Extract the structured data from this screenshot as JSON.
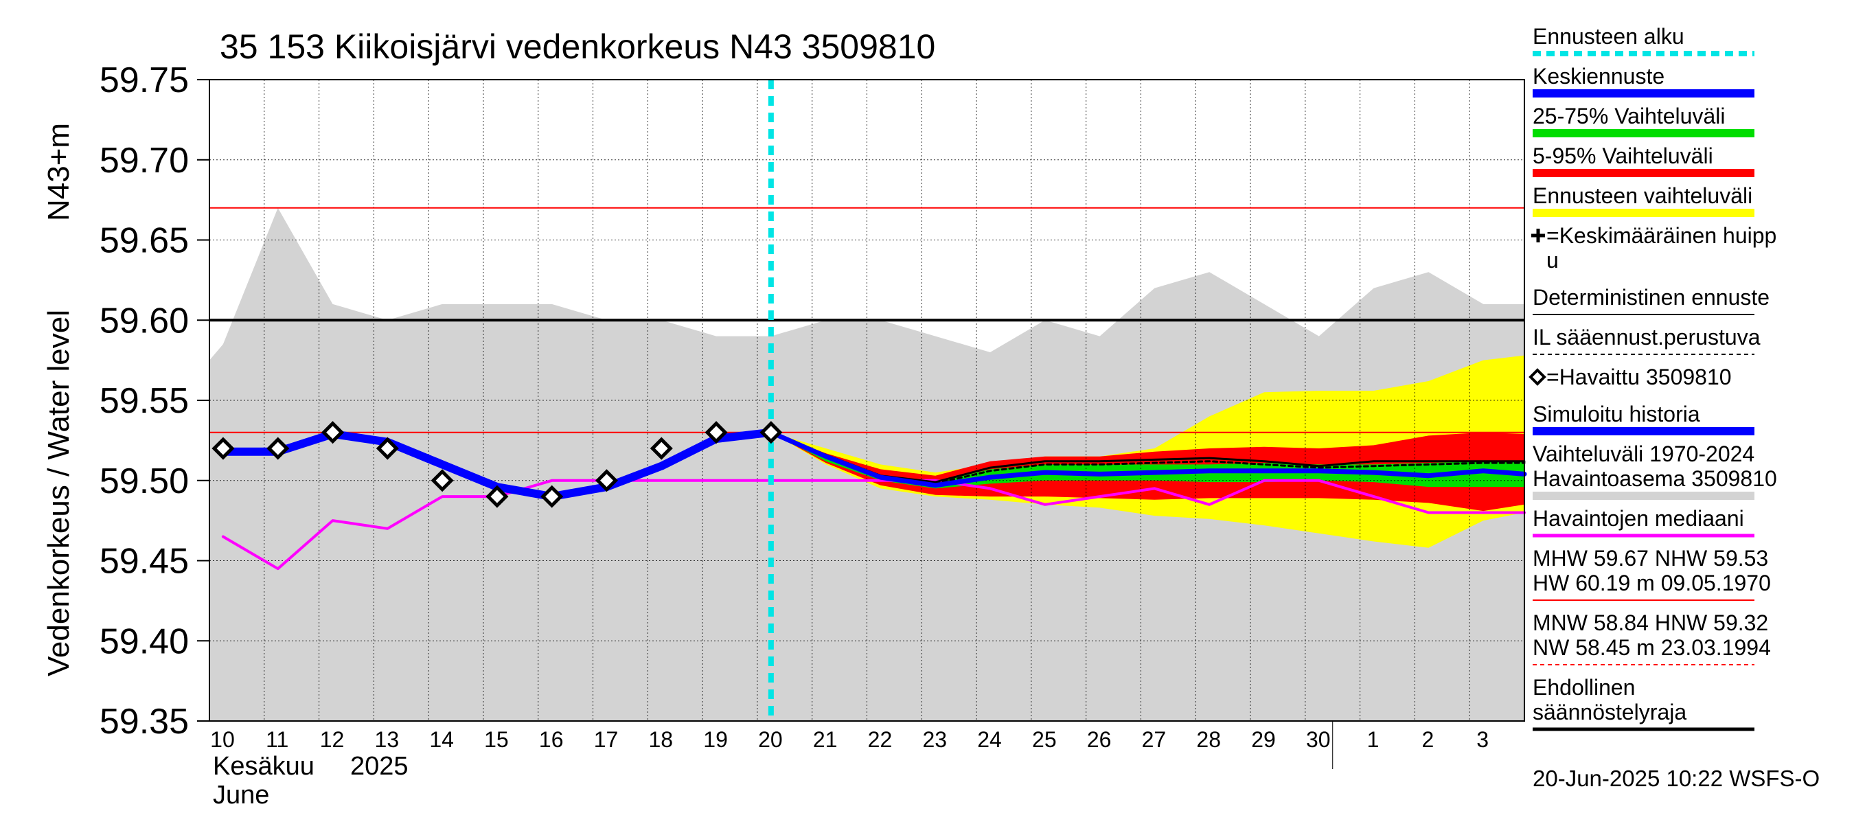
{
  "chart_data": {
    "type": "line",
    "title": "35 153 Kiikoisjärvi vedenkorkeus N43 3509810",
    "ylabel": "Vedenkorkeus / Water level",
    "yunit": "N43+m",
    "ylim": [
      59.35,
      59.75
    ],
    "yticks": [
      "59.75",
      "59.70",
      "59.65",
      "59.60",
      "59.55",
      "59.50",
      "59.45",
      "59.40",
      "59.35"
    ],
    "xlim": [
      -0.25,
      23.75
    ],
    "x_tick_labels": [
      "10",
      "11",
      "12",
      "13",
      "14",
      "15",
      "16",
      "17",
      "18",
      "19",
      "20",
      "21",
      "22",
      "23",
      "24",
      "25",
      "26",
      "27",
      "28",
      "29",
      "30",
      "1",
      "2",
      "3"
    ],
    "x_month_label_1": "Kesäkuu",
    "x_year_label": "2025",
    "x_month_label_2": "June",
    "forecast_start_x": 10,
    "series": [
      {
        "name": "Vaihteluväli 1970-2024 upper",
        "color": "#d3d3d3",
        "x": [
          -0.25,
          0,
          1,
          2,
          3,
          4,
          5,
          6,
          7,
          8,
          9,
          10,
          11,
          12,
          13,
          14,
          15,
          16,
          17,
          18,
          19,
          20,
          21,
          22,
          23,
          23.75
        ],
        "values": [
          59.575,
          59.585,
          59.67,
          59.61,
          59.6,
          59.61,
          59.61,
          59.61,
          59.6,
          59.6,
          59.59,
          59.59,
          59.6,
          59.6,
          59.59,
          59.58,
          59.6,
          59.59,
          59.62,
          59.63,
          59.61,
          59.59,
          59.62,
          59.63,
          59.61,
          59.61
        ]
      },
      {
        "name": "Ennusteen vaihteluväli upper",
        "color": "#ffff00",
        "x": [
          10,
          11,
          12,
          13,
          14,
          15,
          16,
          17,
          18,
          19,
          20,
          21,
          22,
          23,
          23.75
        ],
        "values": [
          59.53,
          59.52,
          59.51,
          59.505,
          59.51,
          59.515,
          59.515,
          59.52,
          59.54,
          59.555,
          59.556,
          59.556,
          59.562,
          59.575,
          59.578
        ]
      },
      {
        "name": "Ennusteen vaihteluväli lower",
        "color": "#ffff00",
        "x": [
          10,
          11,
          12,
          13,
          14,
          15,
          16,
          17,
          18,
          19,
          20,
          21,
          22,
          23,
          23.75
        ],
        "values": [
          59.53,
          59.51,
          59.495,
          59.49,
          59.488,
          59.485,
          59.483,
          59.478,
          59.476,
          59.472,
          59.467,
          59.462,
          59.458,
          59.475,
          59.48
        ]
      },
      {
        "name": "5-95% Vaihteluväli upper",
        "color": "#ff0000",
        "x": [
          10,
          11,
          12,
          13,
          14,
          15,
          16,
          17,
          18,
          19,
          20,
          21,
          22,
          23,
          23.75
        ],
        "values": [
          59.53,
          59.517,
          59.507,
          59.503,
          59.512,
          59.515,
          59.515,
          59.518,
          59.52,
          59.521,
          59.52,
          59.522,
          59.528,
          59.53,
          59.529
        ]
      },
      {
        "name": "5-95% Vaihteluväli lower",
        "color": "#ff0000",
        "x": [
          10,
          11,
          12,
          13,
          14,
          15,
          16,
          17,
          18,
          19,
          20,
          21,
          22,
          23,
          23.75
        ],
        "values": [
          59.53,
          59.511,
          59.497,
          59.491,
          59.49,
          59.49,
          59.489,
          59.488,
          59.489,
          59.489,
          59.489,
          59.488,
          59.486,
          59.481,
          59.485
        ]
      },
      {
        "name": "25-75% Vaihteluväli upper",
        "color": "#00dd00",
        "x": [
          10,
          11,
          12,
          13,
          14,
          15,
          16,
          17,
          18,
          19,
          20,
          21,
          22,
          23,
          23.75
        ],
        "values": [
          59.53,
          59.516,
          59.503,
          59.499,
          59.507,
          59.51,
          59.51,
          59.51,
          59.51,
          59.511,
          59.51,
          59.51,
          59.511,
          59.512,
          59.512
        ]
      },
      {
        "name": "25-75% Vaihteluväli lower",
        "color": "#00dd00",
        "x": [
          10,
          11,
          12,
          13,
          14,
          15,
          16,
          17,
          18,
          19,
          20,
          21,
          22,
          23,
          23.75
        ],
        "values": [
          59.53,
          59.512,
          59.5,
          59.495,
          59.498,
          59.5,
          59.5,
          59.5,
          59.499,
          59.499,
          59.5,
          59.499,
          59.496,
          59.496,
          59.496
        ]
      },
      {
        "name": "Deterministinen ennuste",
        "color": "#000000",
        "x": [
          10,
          11,
          12,
          13,
          14,
          15,
          16,
          17,
          18,
          19,
          20,
          21,
          22,
          23,
          23.75
        ],
        "values": [
          59.53,
          59.516,
          59.503,
          59.499,
          59.508,
          59.512,
          59.512,
          59.513,
          59.514,
          59.512,
          59.509,
          59.512,
          59.512,
          59.512,
          59.512
        ]
      },
      {
        "name": "IL sääennust.perustuva",
        "color": "#000000",
        "x": [
          10,
          11,
          12,
          13,
          14,
          15,
          16,
          17,
          18,
          19,
          20,
          21,
          22,
          23,
          23.75
        ],
        "values": [
          59.53,
          59.515,
          59.502,
          59.498,
          59.506,
          59.51,
          59.51,
          59.511,
          59.512,
          59.51,
          59.508,
          59.509,
          59.51,
          59.511,
          59.511
        ]
      },
      {
        "name": "Keskiennuste",
        "color": "#0000ff",
        "x": [
          10,
          11,
          12,
          13,
          14,
          15,
          16,
          17,
          18,
          19,
          20,
          21,
          22,
          23,
          23.75
        ],
        "values": [
          59.53,
          59.515,
          59.502,
          59.497,
          59.502,
          59.505,
          59.504,
          59.505,
          59.506,
          59.506,
          59.506,
          59.505,
          59.503,
          59.506,
          59.504
        ]
      },
      {
        "name": "Simuloitu historia",
        "color": "#0000ff",
        "x": [
          0,
          1,
          2,
          3,
          4,
          5,
          6,
          7,
          8,
          9,
          10
        ],
        "values": [
          59.518,
          59.518,
          59.529,
          59.524,
          59.51,
          59.496,
          59.49,
          59.496,
          59.509,
          59.526,
          59.53
        ]
      },
      {
        "name": "Havaintojen mediaani",
        "color": "#ff00ff",
        "x": [
          0,
          1,
          2,
          3,
          4,
          5,
          6,
          7,
          8,
          9,
          10,
          11,
          12,
          13,
          14,
          15,
          16,
          17,
          18,
          19,
          20,
          21,
          22,
          23,
          23.75
        ],
        "values": [
          59.465,
          59.445,
          59.475,
          59.47,
          59.49,
          59.49,
          59.5,
          59.5,
          59.5,
          59.5,
          59.5,
          59.5,
          59.5,
          59.5,
          59.495,
          59.485,
          59.49,
          59.495,
          59.485,
          59.5,
          59.5,
          59.49,
          59.48,
          59.48,
          59.48
        ]
      },
      {
        "name": "Havaittu 3509810",
        "color": "#000000",
        "x": [
          0,
          1,
          2,
          3,
          4,
          5,
          6,
          7,
          8,
          9,
          10
        ],
        "values": [
          59.52,
          59.52,
          59.53,
          59.52,
          59.5,
          59.49,
          59.49,
          59.5,
          59.52,
          59.53,
          59.53
        ]
      }
    ],
    "hlines": [
      {
        "name": "MHW",
        "value": 59.67,
        "color": "#ff0000"
      },
      {
        "name": "NHW",
        "value": 59.53,
        "color": "#ff0000"
      },
      {
        "name": "Ehdollinen säännöstelyraja",
        "value": 59.6,
        "color": "#000000"
      }
    ],
    "legend": {
      "position": "right",
      "items": [
        {
          "lines": [
            "Ennusteen alku"
          ],
          "color": "#00e5e5",
          "style": "dashed-thick"
        },
        {
          "lines": [
            "Keskiennuste"
          ],
          "color": "#0000ff",
          "style": "thick"
        },
        {
          "lines": [
            "25-75% Vaihteluväli"
          ],
          "color": "#00dd00",
          "style": "thick"
        },
        {
          "lines": [
            "5-95% Vaihteluväli"
          ],
          "color": "#ff0000",
          "style": "thick"
        },
        {
          "lines": [
            "Ennusteen vaihteluväli"
          ],
          "color": "#ffff00",
          "style": "thick"
        },
        {
          "lines": [
            "=Keskimääräinen huipp",
            "u"
          ],
          "color": "#000000",
          "style": "plus-marker"
        },
        {
          "lines": [
            "Deterministinen ennuste"
          ],
          "color": "#000000",
          "style": "thin"
        },
        {
          "lines": [
            "IL sääennust.perustuva"
          ],
          "color": "#000000",
          "style": "dashed-thin"
        },
        {
          "lines": [
            "=Havaittu 3509810"
          ],
          "color": "#000000",
          "style": "diamond-marker"
        },
        {
          "lines": [
            "Simuloitu historia"
          ],
          "color": "#0000ff",
          "style": "thick"
        },
        {
          "lines": [
            "Vaihteluväli 1970-2024",
            " Havaintoasema 3509810"
          ],
          "color": "#d3d3d3",
          "style": "thick"
        },
        {
          "lines": [
            "Havaintojen mediaani"
          ],
          "color": "#ff00ff",
          "style": "medium"
        },
        {
          "lines": [
            "MHW  59.67 NHW  59.53",
            "HW  60.19 m 09.05.1970"
          ],
          "color": "#ff0000",
          "style": "thin"
        },
        {
          "lines": [
            "MNW  58.84 HNW  59.32",
            "NW  58.45 m 23.03.1994"
          ],
          "color": "#ff0000",
          "style": "dashed-thin"
        },
        {
          "lines": [
            "Ehdollinen",
            "säännöstelyraja"
          ],
          "color": "#000000",
          "style": "medium"
        }
      ]
    },
    "footer": "20-Jun-2025 10:22 WSFS-O"
  }
}
